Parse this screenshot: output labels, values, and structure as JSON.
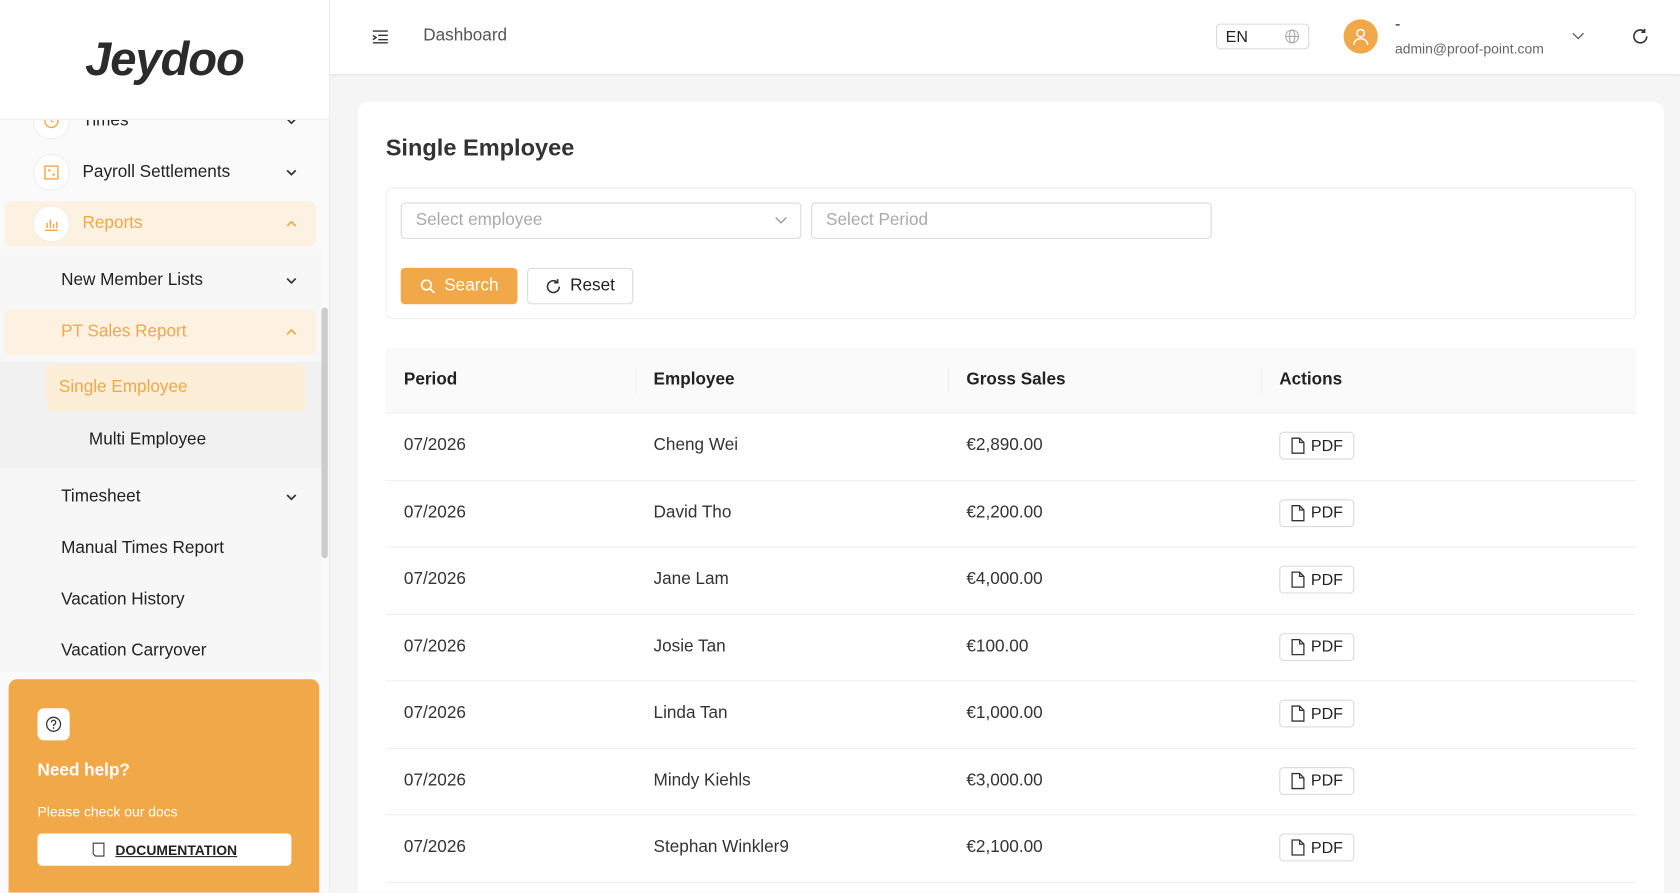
{
  "logo": "Jeydoo",
  "header": {
    "page": "Dashboard",
    "language": "EN",
    "user_name": "-",
    "user_email": "admin@proof-point.com"
  },
  "sidebar": {
    "items": [
      "Times",
      "Payroll Settlements",
      "Reports",
      "New Member Lists",
      "PT Sales Report",
      "Single Employee",
      "Multi Employee",
      "Timesheet",
      "Manual Times Report",
      "Vacation History",
      "Vacation Carryover"
    ],
    "help": {
      "title": "Need help?",
      "text": "Please check our docs",
      "button": "DOCUMENTATION"
    }
  },
  "content": {
    "title": "Single Employee",
    "filters": {
      "employee_placeholder": "Select employee",
      "period_placeholder": "Select Period",
      "search": "Search",
      "reset": "Reset"
    },
    "table": {
      "columns": [
        "Period",
        "Employee",
        "Gross Sales",
        "Actions"
      ],
      "rows": [
        [
          "07/2026",
          "Cheng Wei",
          "€2,890.00",
          "PDF"
        ],
        [
          "07/2026",
          "David Tho",
          "€2,200.00",
          "PDF"
        ],
        [
          "07/2026",
          "Jane Lam",
          "€4,000.00",
          "PDF"
        ],
        [
          "07/2026",
          "Josie Tan",
          "€100.00",
          "PDF"
        ],
        [
          "07/2026",
          "Linda Tan",
          "€1,000.00",
          "PDF"
        ],
        [
          "07/2026",
          "Mindy Kiehls",
          "€3,000.00",
          "PDF"
        ],
        [
          "07/2026",
          "Stephan Winkler9",
          "€2,100.00",
          "PDF"
        ]
      ]
    }
  }
}
